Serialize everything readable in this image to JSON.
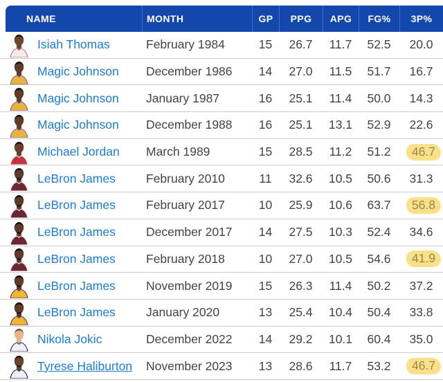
{
  "colors": {
    "header_bg": "#1347ab",
    "header_text": "#ffffff",
    "link_blue": "#1d7cd2",
    "cell_text": "#434343",
    "row_separator": "#cbcbcb",
    "highlight_bg": "#fbe08a",
    "highlight_text": "#95874c"
  },
  "table": {
    "columns": [
      {
        "key": "name",
        "label": "NAME"
      },
      {
        "key": "month",
        "label": "MONTH"
      },
      {
        "key": "gp",
        "label": "GP"
      },
      {
        "key": "ppg",
        "label": "PPG"
      },
      {
        "key": "apg",
        "label": "APG"
      },
      {
        "key": "fg_pct",
        "label": "FG%"
      },
      {
        "key": "p3_pct",
        "label": "3P%"
      }
    ],
    "rows": [
      {
        "name": "Isiah Thomas",
        "month": "February 1984",
        "gp": "15",
        "ppg": "26.7",
        "apg": "11.7",
        "fg_pct": "52.5",
        "p3_pct": "20.0",
        "highlight": false,
        "underline": false,
        "avatar": {
          "icon": "isiah-thomas-headshot",
          "skin": "#6f4533",
          "hair": "#1d1410",
          "jersey": "#f3ece8",
          "trim": "#cc7788",
          "beard": false
        }
      },
      {
        "name": "Magic Johnson",
        "month": "December 1986",
        "gp": "14",
        "ppg": "27.0",
        "apg": "11.5",
        "fg_pct": "51.7",
        "p3_pct": "16.7",
        "highlight": false,
        "underline": false,
        "avatar": {
          "icon": "magic-johnson-headshot",
          "skin": "#5f3b2a",
          "hair": "#140e0a",
          "jersey": "#e9b43a",
          "trim": "#8a66a8",
          "beard": false
        }
      },
      {
        "name": "Magic Johnson",
        "month": "January 1987",
        "gp": "16",
        "ppg": "25.1",
        "apg": "11.4",
        "fg_pct": "50.0",
        "p3_pct": "14.3",
        "highlight": false,
        "underline": false,
        "avatar": {
          "icon": "magic-johnson-headshot",
          "skin": "#5f3b2a",
          "hair": "#140e0a",
          "jersey": "#e9b43a",
          "trim": "#8a66a8",
          "beard": false
        }
      },
      {
        "name": "Magic Johnson",
        "month": "December 1988",
        "gp": "16",
        "ppg": "25.1",
        "apg": "13.1",
        "fg_pct": "52.9",
        "p3_pct": "22.6",
        "highlight": false,
        "underline": false,
        "avatar": {
          "icon": "magic-johnson-headshot",
          "skin": "#5f3b2a",
          "hair": "#140e0a",
          "jersey": "#e9b43a",
          "trim": "#8a66a8",
          "beard": false
        }
      },
      {
        "name": "Michael Jordan",
        "month": "March 1989",
        "gp": "15",
        "ppg": "28.5",
        "apg": "11.2",
        "fg_pct": "51.2",
        "p3_pct": "46.7",
        "highlight": true,
        "underline": false,
        "avatar": {
          "icon": "michael-jordan-headshot",
          "skin": "#6a3f2c",
          "hair": "#1a120e",
          "jersey": "#c4333e",
          "trim": "#e8e8e8",
          "beard": false
        }
      },
      {
        "name": "LeBron James",
        "month": "February 2010",
        "gp": "11",
        "ppg": "32.6",
        "apg": "10.5",
        "fg_pct": "50.6",
        "p3_pct": "31.3",
        "highlight": false,
        "underline": false,
        "avatar": {
          "icon": "lebron-james-headshot",
          "skin": "#5d3a29",
          "hair": "#16100c",
          "jersey": "#6e2637",
          "trim": "#e8dfd0",
          "beard": true
        }
      },
      {
        "name": "LeBron James",
        "month": "February 2017",
        "gp": "10",
        "ppg": "25.9",
        "apg": "10.6",
        "fg_pct": "63.7",
        "p3_pct": "56.8",
        "highlight": true,
        "underline": false,
        "avatar": {
          "icon": "lebron-james-headshot",
          "skin": "#5d3a29",
          "hair": "#16100c",
          "jersey": "#6e2637",
          "trim": "#e8dfd0",
          "beard": true
        }
      },
      {
        "name": "LeBron James",
        "month": "December 2017",
        "gp": "14",
        "ppg": "27.5",
        "apg": "10.3",
        "fg_pct": "52.4",
        "p3_pct": "34.6",
        "highlight": false,
        "underline": false,
        "avatar": {
          "icon": "lebron-james-headshot",
          "skin": "#5d3a29",
          "hair": "#16100c",
          "jersey": "#6e2637",
          "trim": "#e8dfd0",
          "beard": true
        }
      },
      {
        "name": "LeBron James",
        "month": "February 2018",
        "gp": "10",
        "ppg": "27.0",
        "apg": "10.5",
        "fg_pct": "54.6",
        "p3_pct": "41.9",
        "highlight": true,
        "underline": false,
        "avatar": {
          "icon": "lebron-james-headshot",
          "skin": "#5d3a29",
          "hair": "#16100c",
          "jersey": "#6e2637",
          "trim": "#e8dfd0",
          "beard": true
        }
      },
      {
        "name": "LeBron James",
        "month": "November 2019",
        "gp": "15",
        "ppg": "26.3",
        "apg": "11.4",
        "fg_pct": "50.2",
        "p3_pct": "37.2",
        "highlight": false,
        "underline": false,
        "avatar": {
          "icon": "lebron-james-headshot",
          "skin": "#5d3a29",
          "hair": "#16100c",
          "jersey": "#f0b62c",
          "trim": "#5a3d8f",
          "beard": true
        }
      },
      {
        "name": "LeBron James",
        "month": "January 2020",
        "gp": "13",
        "ppg": "25.4",
        "apg": "10.4",
        "fg_pct": "50.4",
        "p3_pct": "33.8",
        "highlight": false,
        "underline": false,
        "avatar": {
          "icon": "lebron-james-headshot",
          "skin": "#5d3a29",
          "hair": "#16100c",
          "jersey": "#f0b62c",
          "trim": "#5a3d8f",
          "beard": true
        }
      },
      {
        "name": "Nikola Jokic",
        "month": "December 2022",
        "gp": "14",
        "ppg": "29.2",
        "apg": "10.1",
        "fg_pct": "60.4",
        "p3_pct": "35.0",
        "highlight": false,
        "underline": false,
        "avatar": {
          "icon": "nikola-jokic-headshot",
          "skin": "#e8b48e",
          "hair": "#7a5536",
          "jersey": "#f2f2f4",
          "trim": "#273b6e",
          "beard": false
        }
      },
      {
        "name": "Tyrese Haliburton",
        "month": "November 2023",
        "gp": "13",
        "ppg": "28.6",
        "apg": "11.7",
        "fg_pct": "53.2",
        "p3_pct": "46.7",
        "highlight": true,
        "underline": true,
        "avatar": {
          "icon": "tyrese-haliburton-headshot",
          "skin": "#6a432f",
          "hair": "#171210",
          "jersey": "#eef0f4",
          "trim": "#1c2f5e",
          "beard": true
        }
      }
    ]
  }
}
